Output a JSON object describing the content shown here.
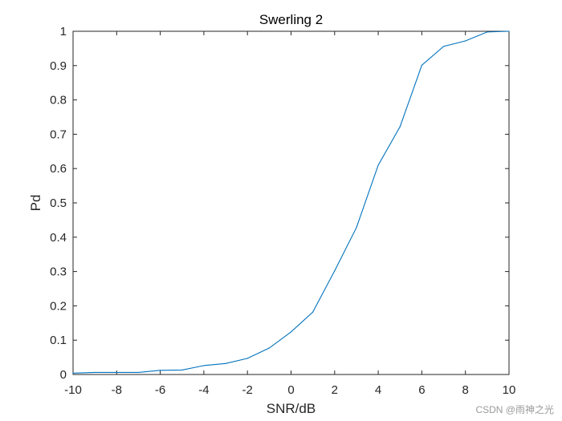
{
  "chart_data": {
    "type": "line",
    "title": "Swerling 2",
    "xlabel": "SNR/dB",
    "ylabel": "Pd",
    "xlim": [
      -10,
      10
    ],
    "ylim": [
      0,
      1
    ],
    "xticks": [
      -10,
      -8,
      -6,
      -4,
      -2,
      0,
      2,
      4,
      6,
      8,
      10
    ],
    "yticks": [
      0,
      0.1,
      0.2,
      0.3,
      0.4,
      0.5,
      0.6,
      0.7,
      0.8,
      0.9,
      1
    ],
    "grid": false,
    "line_color": "#0072BD",
    "series": [
      {
        "x": [
          -10,
          -9,
          -8,
          -7,
          -6,
          -5,
          -4,
          -3,
          -2,
          -1,
          0,
          1,
          2,
          3,
          4,
          5,
          6,
          7,
          8,
          9,
          10
        ],
        "y": [
          0.004,
          0.006,
          0.006,
          0.006,
          0.012,
          0.013,
          0.026,
          0.032,
          0.047,
          0.077,
          0.124,
          0.182,
          0.302,
          0.428,
          0.61,
          0.722,
          0.901,
          0.956,
          0.972,
          0.998,
          1.0
        ]
      }
    ]
  },
  "watermark": "CSDN @雨神之光"
}
